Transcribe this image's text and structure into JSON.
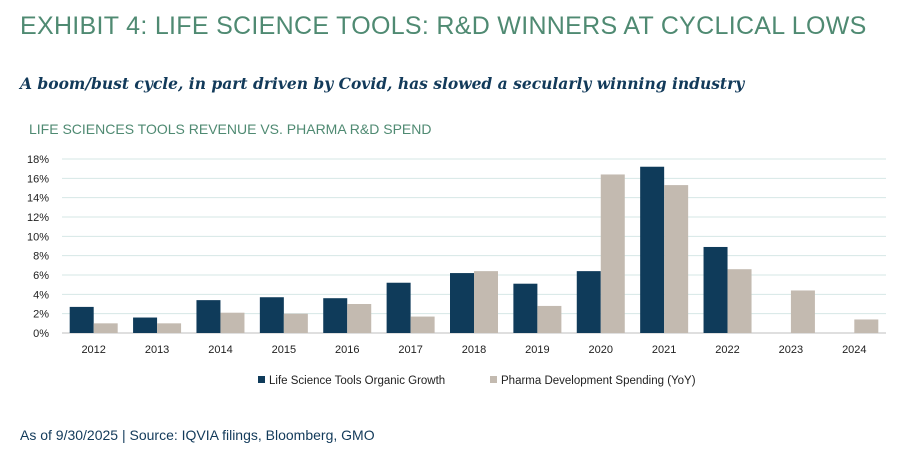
{
  "exhibit_title": "EXHIBIT 4: LIFE SCIENCE TOOLS: R&D WINNERS AT CYCLICAL LOWS",
  "subtitle": "A boom/bust cycle, in part driven by Covid, has slowed a secularly winning industry",
  "source": "As of 9/30/2025 | Source: IQVIA filings, Bloomberg, GMO",
  "chart_data": {
    "type": "bar",
    "title": "LIFE SCIENCES TOOLS REVENUE VS. PHARMA R&D SPEND",
    "categories": [
      "2012",
      "2013",
      "2014",
      "2015",
      "2016",
      "2017",
      "2018",
      "2019",
      "2020",
      "2021",
      "2022",
      "2023",
      "2024"
    ],
    "series": [
      {
        "name": "Life Science Tools Organic Growth",
        "color": "#0f3b5a",
        "values": [
          2.7,
          1.6,
          3.4,
          3.7,
          3.6,
          5.2,
          6.2,
          5.1,
          6.4,
          17.2,
          8.9,
          null,
          null
        ]
      },
      {
        "name": "Pharma Development Spending (YoY)",
        "color": "#c3bab0",
        "values": [
          1.0,
          1.0,
          2.1,
          2.0,
          3.0,
          1.7,
          6.4,
          2.8,
          16.4,
          15.3,
          6.6,
          4.4,
          1.4
        ]
      }
    ],
    "ylim": [
      0,
      18
    ],
    "yticks": [
      "0%",
      "2%",
      "4%",
      "6%",
      "8%",
      "10%",
      "12%",
      "14%",
      "16%",
      "18%"
    ],
    "grid": true,
    "legend_position": "bottom"
  }
}
